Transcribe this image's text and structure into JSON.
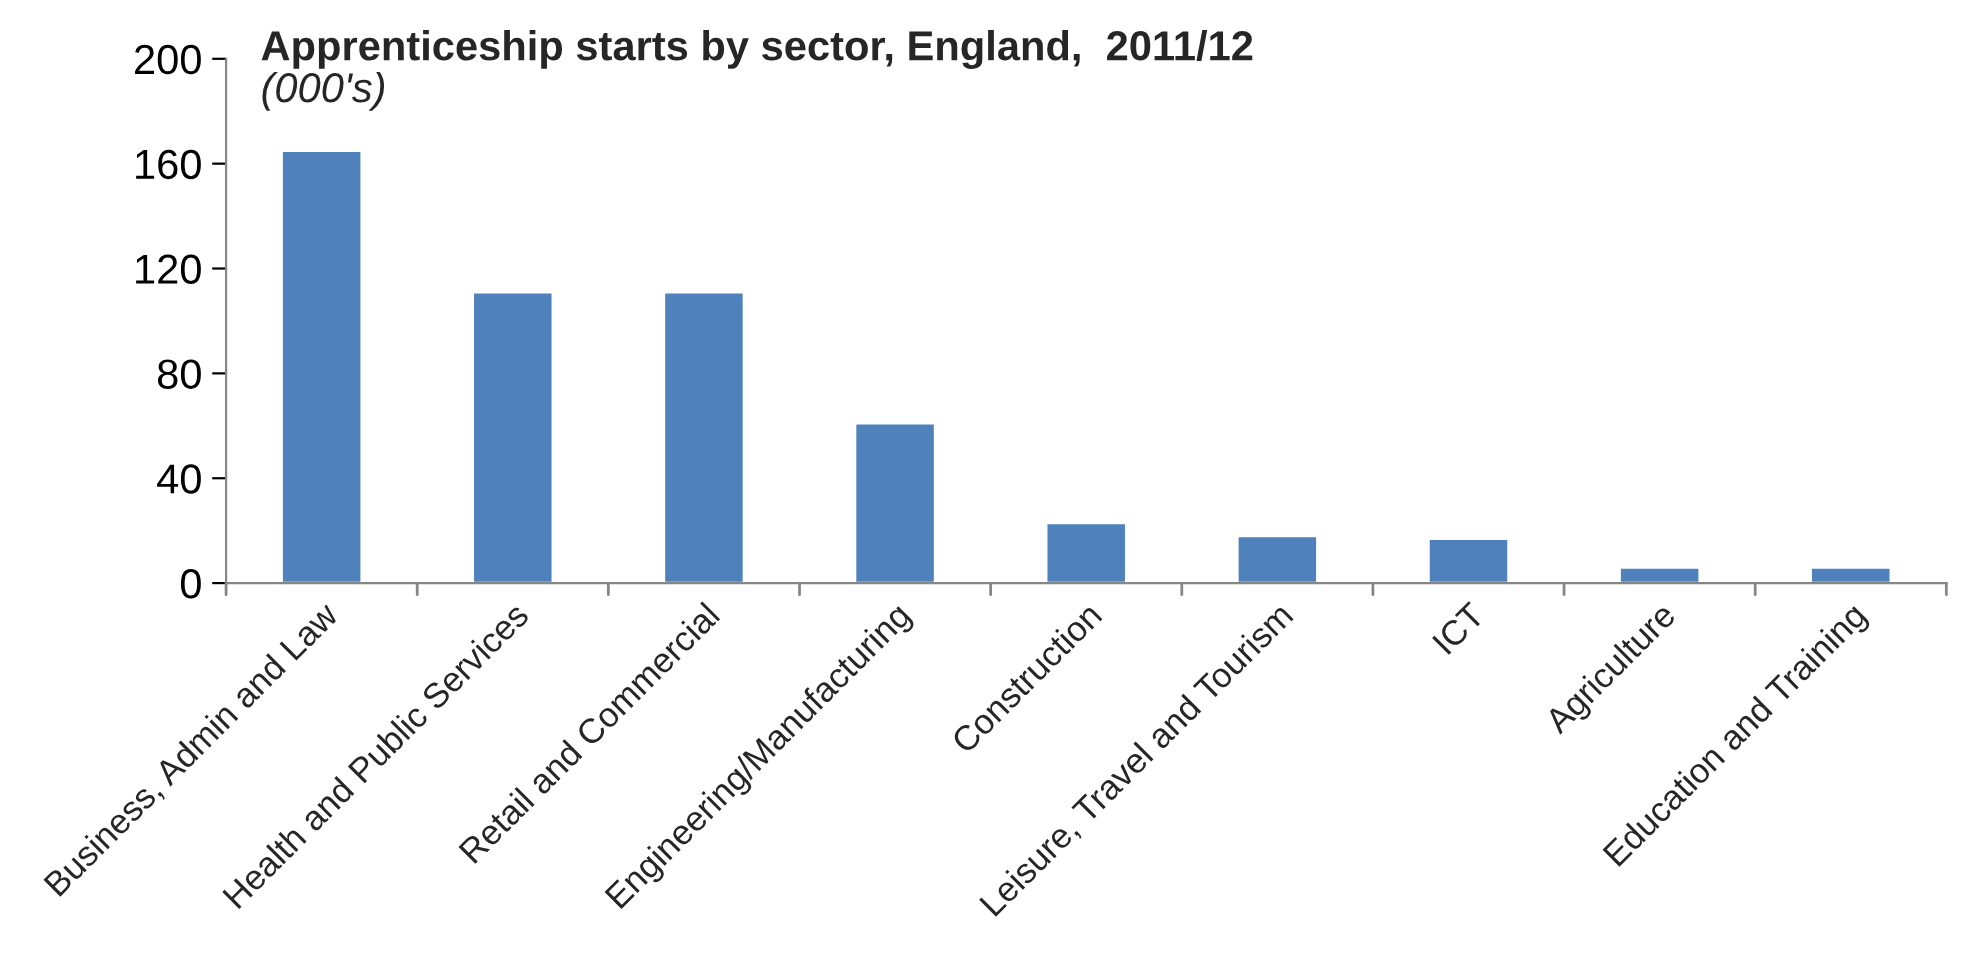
{
  "chart_data": {
    "type": "bar",
    "title": "Apprenticeship starts by sector, England,  2011/12",
    "subtitle": "(000's)",
    "categories": [
      "Business, Admin and Law",
      "Health and Public Services",
      "Retail and Commercial",
      "Engineering/Manufacturing",
      "Construction",
      "Leisure, Travel and Tourism",
      "ICT",
      "Agriculture",
      "Education and Training"
    ],
    "values": [
      165,
      111,
      111,
      61,
      23,
      18,
      17,
      6,
      6
    ],
    "color": "#4f81bd",
    "ylim": [
      0,
      200
    ],
    "yticks": [
      0,
      40,
      80,
      120,
      160,
      200
    ],
    "grid": false,
    "legend": false
  }
}
